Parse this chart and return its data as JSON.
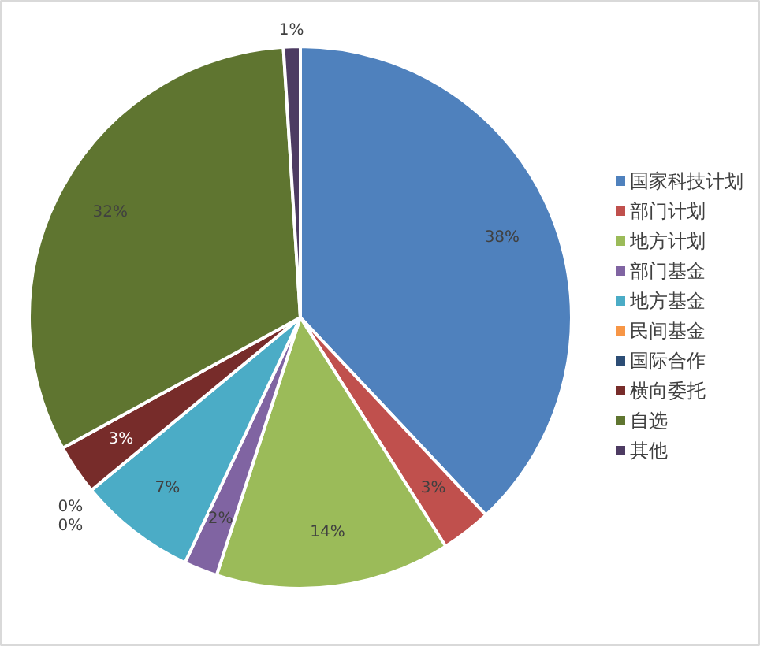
{
  "chart_data": {
    "type": "pie",
    "categories": [
      "国家科技计划",
      "部门计划",
      "地方计划",
      "部门基金",
      "地方基金",
      "民间基金",
      "国际合作",
      "横向委托",
      "自选",
      "其他"
    ],
    "values": [
      38,
      3,
      14,
      2,
      7,
      0,
      0,
      3,
      32,
      1
    ],
    "colors": [
      "#4f81bd",
      "#c0504d",
      "#9bbb59",
      "#8064a2",
      "#4bacc6",
      "#f79646",
      "#2c4d75",
      "#772c2a",
      "#5f7530",
      "#4d3b62"
    ],
    "value_labels": [
      "38%",
      "3%",
      "14%",
      "2%",
      "7%",
      "0%",
      "0%",
      "3%",
      "32%",
      "1%"
    ],
    "legend": "right"
  }
}
